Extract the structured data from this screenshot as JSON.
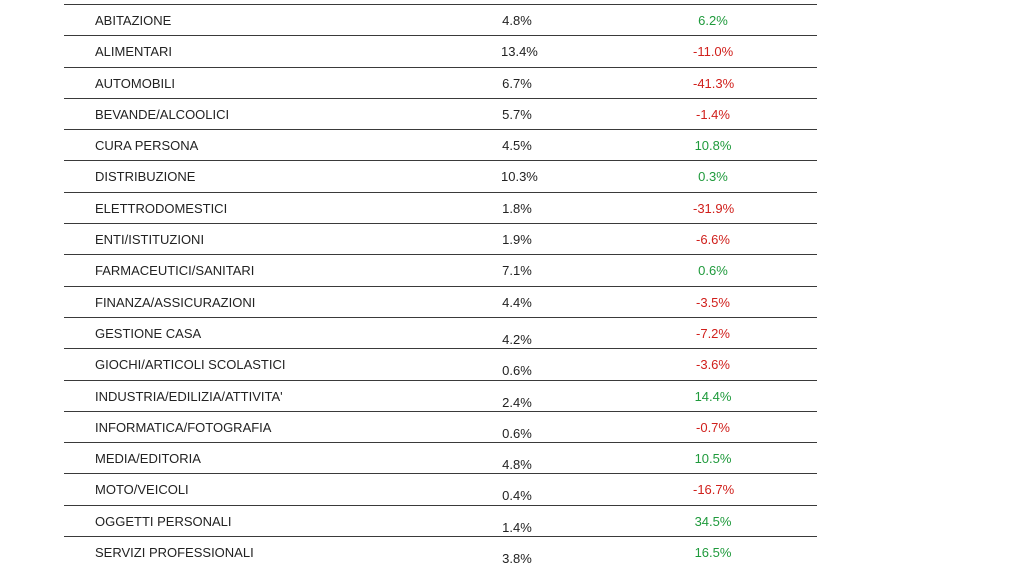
{
  "colors": {
    "positive": "#1f9a3c",
    "negative": "#d0201c",
    "text": "#222222",
    "rule": "#3a3a3a"
  },
  "rows": [
    {
      "category": "ABITAZIONE",
      "share": "4.8%",
      "variation": "6.2%",
      "trend": "pos"
    },
    {
      "category": "ALIMENTARI",
      "share": "13.4%",
      "variation": "-11.0%",
      "trend": "neg"
    },
    {
      "category": "AUTOMOBILI",
      "share": "6.7%",
      "variation": "-41.3%",
      "trend": "neg"
    },
    {
      "category": "BEVANDE/ALCOOLICI",
      "share": "5.7%",
      "variation": "-1.4%",
      "trend": "neg"
    },
    {
      "category": "CURA PERSONA",
      "share": "4.5%",
      "variation": "10.8%",
      "trend": "pos"
    },
    {
      "category": "DISTRIBUZIONE",
      "share": "10.3%",
      "variation": "0.3%",
      "trend": "pos"
    },
    {
      "category": "ELETTRODOMESTICI",
      "share": "1.8%",
      "variation": "-31.9%",
      "trend": "neg"
    },
    {
      "category": "ENTI/ISTITUZIONI",
      "share": "1.9%",
      "variation": "-6.6%",
      "trend": "neg"
    },
    {
      "category": "FARMACEUTICI/SANITARI",
      "share": "7.1%",
      "variation": "0.6%",
      "trend": "pos"
    },
    {
      "category": "FINANZA/ASSICURAZIONI",
      "share": "4.4%",
      "variation": "-3.5%",
      "trend": "neg"
    },
    {
      "category": "GESTIONE CASA",
      "share": "4.2%",
      "variation": "-7.2%",
      "trend": "neg"
    },
    {
      "category": "GIOCHI/ARTICOLI SCOLASTICI",
      "share": "0.6%",
      "variation": "-3.6%",
      "trend": "neg"
    },
    {
      "category": "INDUSTRIA/EDILIZIA/ATTIVITA'",
      "share": "2.4%",
      "variation": "14.4%",
      "trend": "pos"
    },
    {
      "category": "INFORMATICA/FOTOGRAFIA",
      "share": "0.6%",
      "variation": "-0.7%",
      "trend": "neg"
    },
    {
      "category": "MEDIA/EDITORIA",
      "share": "4.8%",
      "variation": "10.5%",
      "trend": "pos"
    },
    {
      "category": "MOTO/VEICOLI",
      "share": "0.4%",
      "variation": "-16.7%",
      "trend": "neg"
    },
    {
      "category": "OGGETTI PERSONALI",
      "share": "1.4%",
      "variation": "34.5%",
      "trend": "pos"
    },
    {
      "category": "SERVIZI PROFESSIONALI",
      "share": "3.8%",
      "variation": "16.5%",
      "trend": "pos"
    }
  ]
}
